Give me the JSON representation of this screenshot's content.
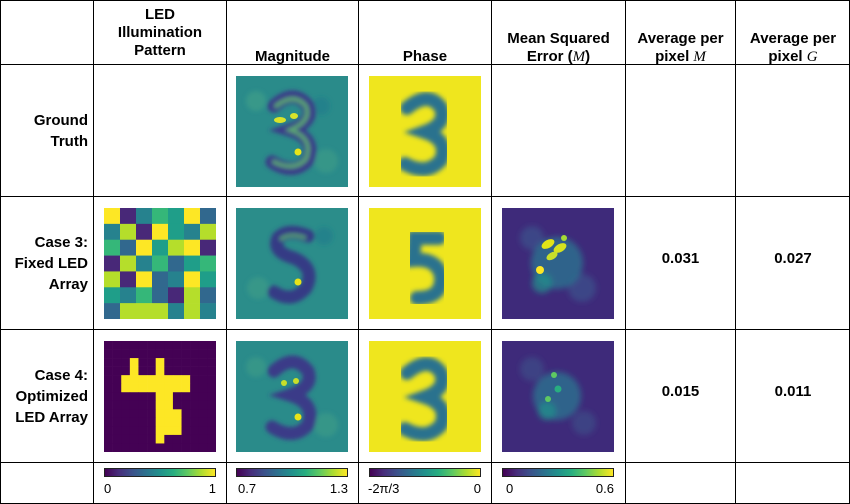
{
  "headers": {
    "led_pattern": [
      "LED",
      "Illumination",
      "Pattern"
    ],
    "magnitude": "Magnitude",
    "phase": "Phase",
    "mse_line1": "Mean Squared",
    "mse_line2_prefix": "Error (",
    "mse_symbol": "M",
    "mse_line2_suffix": ")",
    "avg_m_line1": "Average per",
    "avg_m_line2_prefix": "pixel ",
    "avg_m_symbol": "M",
    "avg_g_line1": "Average per",
    "avg_g_line2_prefix": "pixel ",
    "avg_g_symbol": "G"
  },
  "rows": [
    {
      "label": [
        "Ground",
        "Truth"
      ],
      "digit": "3",
      "avg_m": "",
      "avg_g": ""
    },
    {
      "label": [
        "Case 3:",
        "Fixed LED",
        "Array"
      ],
      "digit": "5",
      "avg_m": "0.031",
      "avg_g": "0.027"
    },
    {
      "label": [
        "Case 4:",
        "Optimized",
        "LED Array"
      ],
      "digit": "3",
      "avg_m": "0.015",
      "avg_g": "0.011"
    }
  ],
  "colorbars": [
    {
      "min": "0",
      "max": "1"
    },
    {
      "min": "0.7",
      "max": "1.3"
    },
    {
      "min": "-2π/3",
      "max": "0"
    },
    {
      "min": "0",
      "max": "0.6"
    }
  ],
  "colors": {
    "viridis_dark": "#440154",
    "viridis_blue": "#3b528b",
    "viridis_teal": "#21918c",
    "viridis_green": "#5ec962",
    "viridis_yellow": "#fde725",
    "magnitude_bg": "#2a8b8a",
    "phase_bg": "#efe61e"
  },
  "led_fixed_grid": [
    [
      7,
      1,
      3,
      5,
      4,
      7,
      2
    ],
    [
      3,
      6,
      1,
      7,
      4,
      3,
      6
    ],
    [
      5,
      2,
      7,
      4,
      6,
      7,
      1
    ],
    [
      1,
      6,
      3,
      5,
      2,
      4,
      5
    ],
    [
      6,
      1,
      7,
      2,
      3,
      7,
      4
    ],
    [
      4,
      3,
      5,
      2,
      1,
      6,
      2
    ],
    [
      2,
      6,
      6,
      6,
      3,
      6,
      3
    ]
  ],
  "led_optimized_grid": [
    [
      0,
      0,
      0,
      0,
      0,
      0,
      0,
      0,
      0,
      0,
      0,
      0,
      0
    ],
    [
      0,
      0,
      0,
      0,
      0,
      0,
      0,
      0,
      0,
      0,
      0,
      0,
      0
    ],
    [
      0,
      0,
      0,
      1,
      0,
      0,
      1,
      0,
      0,
      0,
      0,
      0,
      0
    ],
    [
      0,
      0,
      0,
      1,
      0,
      0,
      1,
      0,
      0,
      0,
      0,
      0,
      0
    ],
    [
      0,
      0,
      1,
      1,
      1,
      1,
      1,
      1,
      1,
      1,
      0,
      0,
      0
    ],
    [
      0,
      0,
      1,
      1,
      1,
      1,
      1,
      1,
      1,
      1,
      0,
      0,
      0
    ],
    [
      0,
      0,
      0,
      0,
      0,
      0,
      1,
      1,
      0,
      0,
      0,
      0,
      0
    ],
    [
      0,
      0,
      0,
      0,
      0,
      0,
      1,
      1,
      0,
      0,
      0,
      0,
      0
    ],
    [
      0,
      0,
      0,
      0,
      0,
      0,
      1,
      1,
      1,
      0,
      0,
      0,
      0
    ],
    [
      0,
      0,
      0,
      0,
      0,
      0,
      1,
      1,
      1,
      0,
      0,
      0,
      0
    ],
    [
      0,
      0,
      0,
      0,
      0,
      0,
      1,
      1,
      1,
      0,
      0,
      0,
      0
    ],
    [
      0,
      0,
      0,
      0,
      0,
      0,
      1,
      0,
      0,
      0,
      0,
      0,
      0
    ],
    [
      0,
      0,
      0,
      0,
      0,
      0,
      0,
      0,
      0,
      0,
      0,
      0,
      0
    ]
  ]
}
